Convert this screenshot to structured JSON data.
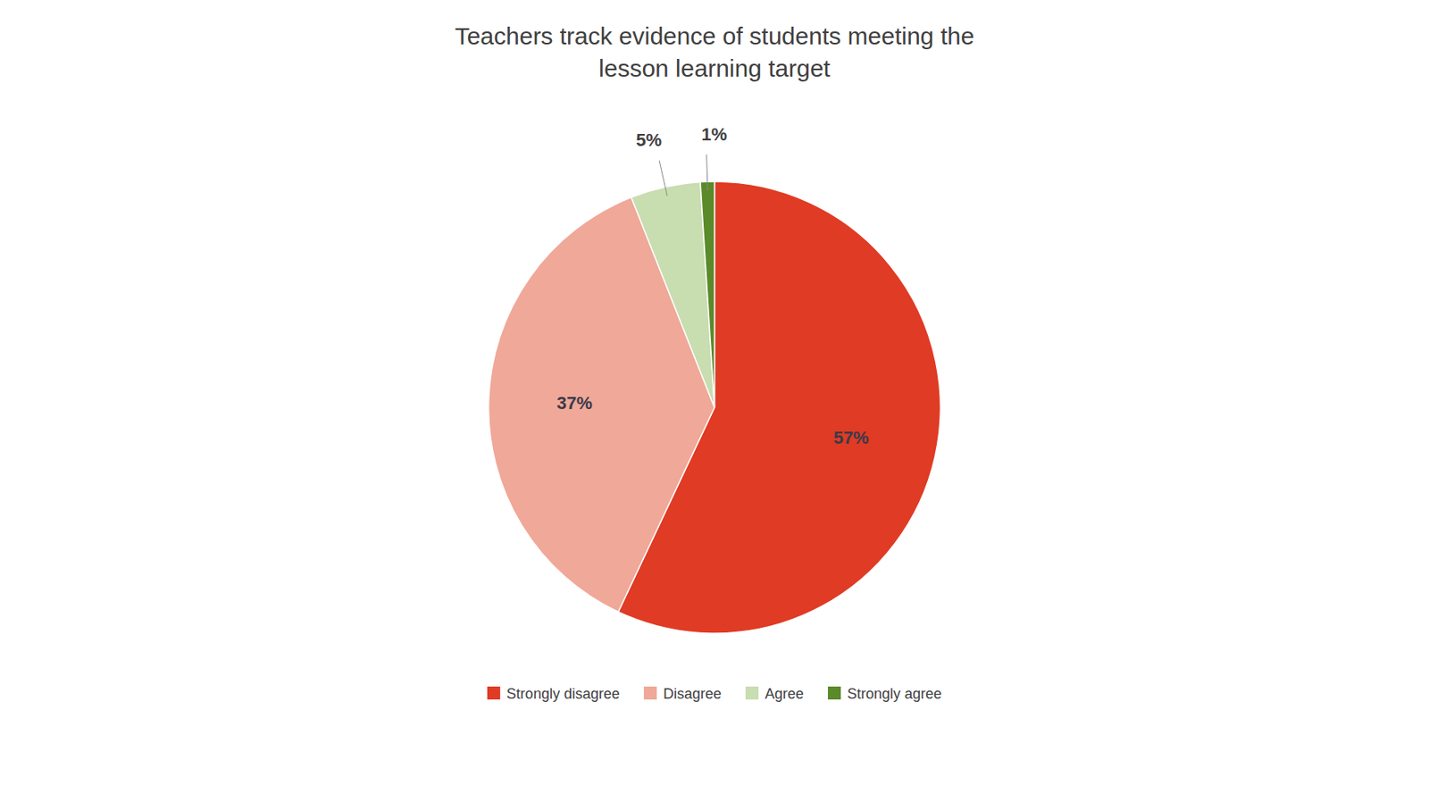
{
  "chart_data": {
    "type": "pie",
    "title": "Teachers track evidence of students meeting the\nlesson learning target",
    "categories": [
      "Strongly disagree",
      "Disagree",
      "Agree",
      "Strongly agree"
    ],
    "values": [
      57,
      37,
      5,
      1
    ],
    "value_labels": [
      "57%",
      "37%",
      "5%",
      "1%"
    ],
    "colors": [
      "#e03b24",
      "#f0a898",
      "#c8ddb0",
      "#5a8a2a"
    ],
    "data_labels": true,
    "legend": "bottom"
  }
}
